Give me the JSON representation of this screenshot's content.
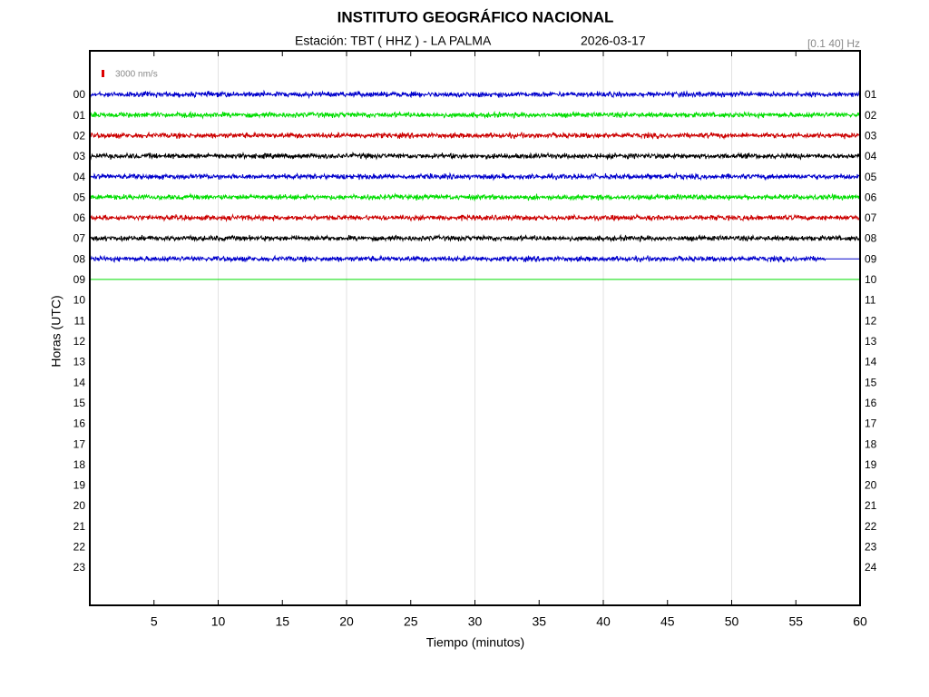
{
  "chart_data": {
    "type": "helicorder",
    "title": "INSTITUTO GEOGRÁFICO NACIONAL",
    "station": "Estación:  TBT ( HHZ ) - LA PALMA",
    "date": "2026-03-17",
    "filter": "[0.1 40] Hz",
    "scale": {
      "value": 3000,
      "label": "3000 nm/s",
      "color": "#dd0000"
    },
    "xlabel": "Tiempo (minutos)",
    "ylabel": "Horas (UTC)",
    "xlim": [
      0,
      60
    ],
    "xticks": [
      5,
      10,
      15,
      20,
      25,
      30,
      35,
      40,
      45,
      50,
      55,
      60
    ],
    "xgrid": [
      10,
      20,
      30,
      40,
      50
    ],
    "categories": [
      "00",
      "01",
      "02",
      "03",
      "04",
      "05",
      "06",
      "07",
      "08",
      "09",
      "10",
      "11",
      "12",
      "13",
      "14",
      "15",
      "16",
      "17",
      "18",
      "19",
      "20",
      "21",
      "22",
      "23"
    ],
    "right_labels": [
      "01",
      "02",
      "03",
      "04",
      "05",
      "06",
      "07",
      "08",
      "09",
      "10",
      "11",
      "12",
      "13",
      "14",
      "15",
      "16",
      "17",
      "18",
      "19",
      "20",
      "21",
      "22",
      "23",
      "24"
    ],
    "traces": [
      {
        "hour": "00",
        "color": "#0000cc",
        "x": [
          0,
          60
        ],
        "amplitude": 1500
      },
      {
        "hour": "01",
        "color": "#00dd00",
        "x": [
          0,
          60
        ],
        "amplitude": 1500
      },
      {
        "hour": "02",
        "color": "#cc0000",
        "x": [
          0,
          60
        ],
        "amplitude": 1500
      },
      {
        "hour": "03",
        "color": "#000000",
        "x": [
          0,
          60
        ],
        "amplitude": 1500
      },
      {
        "hour": "04",
        "color": "#0000cc",
        "x": [
          0,
          60
        ],
        "amplitude": 1500
      },
      {
        "hour": "05",
        "color": "#00dd00",
        "x": [
          0,
          60
        ],
        "amplitude": 1500
      },
      {
        "hour": "06",
        "color": "#cc0000",
        "x": [
          0,
          60
        ],
        "amplitude": 1500
      },
      {
        "hour": "07",
        "color": "#000000",
        "x": [
          0,
          60
        ],
        "amplitude": 1500
      },
      {
        "hour": "08",
        "color": "#0000cc",
        "x": [
          0,
          57.3
        ],
        "amplitude": 1500
      },
      {
        "hour": "08",
        "color": "#0000cc",
        "x": [
          57.3,
          60
        ],
        "amplitude": 0
      },
      {
        "hour": "09",
        "color": "#00dd00",
        "x": [
          0,
          60
        ],
        "amplitude": 0
      }
    ]
  }
}
